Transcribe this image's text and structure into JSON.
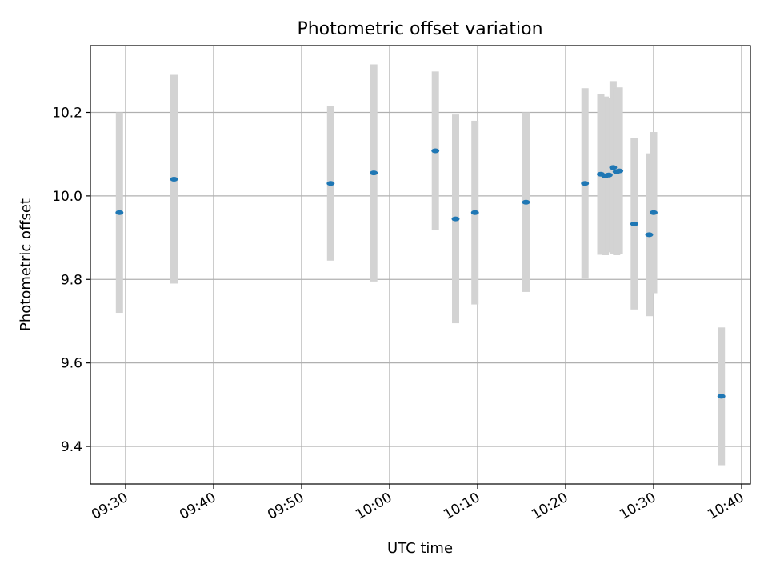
{
  "chart_data": {
    "type": "scatter",
    "title": "Photometric offset variation",
    "xlabel": "UTC time",
    "ylabel": "Photometric offset",
    "grid": true,
    "x_unit": "minutes since 09:00 UTC",
    "xlim": [
      26,
      101
    ],
    "ylim": [
      9.31,
      10.36
    ],
    "xticks": [
      {
        "value": 30,
        "label": "09:30"
      },
      {
        "value": 40,
        "label": "09:40"
      },
      {
        "value": 50,
        "label": "09:50"
      },
      {
        "value": 60,
        "label": "10:00"
      },
      {
        "value": 70,
        "label": "10:10"
      },
      {
        "value": 80,
        "label": "10:20"
      },
      {
        "value": 90,
        "label": "10:30"
      },
      {
        "value": 100,
        "label": "10:40"
      }
    ],
    "yticks": [
      {
        "value": 9.4,
        "label": "9.4"
      },
      {
        "value": 9.6,
        "label": "9.6"
      },
      {
        "value": 9.8,
        "label": "9.8"
      },
      {
        "value": 10.0,
        "label": "10.0"
      },
      {
        "value": 10.2,
        "label": "10.2"
      }
    ],
    "colors": {
      "marker": "#1f77b4",
      "errorbar": "#d3d3d3",
      "grid": "#b0b0b0"
    },
    "series": [
      {
        "name": "Photometric offset",
        "points": [
          {
            "x": 29.3,
            "y": 9.96,
            "err": 0.24
          },
          {
            "x": 35.5,
            "y": 10.04,
            "err": 0.25
          },
          {
            "x": 53.3,
            "y": 10.03,
            "err": 0.185
          },
          {
            "x": 58.2,
            "y": 10.055,
            "err": 0.26
          },
          {
            "x": 65.2,
            "y": 10.108,
            "err": 0.19
          },
          {
            "x": 67.5,
            "y": 9.945,
            "err": 0.25
          },
          {
            "x": 69.7,
            "y": 9.96,
            "err": 0.22
          },
          {
            "x": 75.5,
            "y": 9.985,
            "err": 0.215
          },
          {
            "x": 82.2,
            "y": 10.03,
            "err": 0.228
          },
          {
            "x": 84.0,
            "y": 10.052,
            "err": 0.193
          },
          {
            "x": 84.5,
            "y": 10.048,
            "err": 0.19
          },
          {
            "x": 84.9,
            "y": 10.05,
            "err": 0.185
          },
          {
            "x": 85.4,
            "y": 10.068,
            "err": 0.207
          },
          {
            "x": 85.8,
            "y": 10.058,
            "err": 0.2
          },
          {
            "x": 86.1,
            "y": 10.06,
            "err": 0.2
          },
          {
            "x": 87.8,
            "y": 9.933,
            "err": 0.205
          },
          {
            "x": 89.5,
            "y": 9.907,
            "err": 0.195
          },
          {
            "x": 90.0,
            "y": 9.96,
            "err": 0.193
          },
          {
            "x": 97.7,
            "y": 9.52,
            "err": 0.165
          }
        ]
      }
    ]
  }
}
